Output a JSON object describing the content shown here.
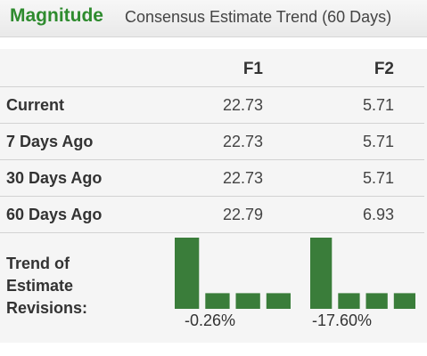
{
  "header": {
    "brand": "Magnitude",
    "subtitle": "Consensus Estimate Trend (60 Days)"
  },
  "table": {
    "columns": [
      "F1",
      "F2"
    ],
    "rows": [
      {
        "label": "Current",
        "f1": "22.73",
        "f2": "5.71"
      },
      {
        "label": "7 Days Ago",
        "f1": "22.73",
        "f2": "5.71"
      },
      {
        "label": "30 Days Ago",
        "f1": "22.73",
        "f2": "5.71"
      },
      {
        "label": "60 Days Ago",
        "f1": "22.79",
        "f2": "6.93"
      }
    ]
  },
  "trend": {
    "label_lines": [
      "Trend of",
      "Estimate",
      "Revisions:"
    ],
    "f1_change": "-0.26%",
    "f2_change": "-17.60%",
    "bar_color": "#3a7d3a"
  },
  "chart_data": [
    {
      "type": "bar",
      "categories": [
        "60 Days Ago",
        "30 Days Ago",
        "7 Days Ago",
        "Current"
      ],
      "values": [
        22.79,
        22.73,
        22.73,
        22.73
      ],
      "series": [
        {
          "name": "F1",
          "values": [
            22.79,
            22.73,
            22.73,
            22.73
          ]
        }
      ]
    },
    {
      "type": "bar",
      "categories": [
        "60 Days Ago",
        "30 Days Ago",
        "7 Days Ago",
        "Current"
      ],
      "values": [
        6.93,
        5.71,
        5.71,
        5.71
      ],
      "series": [
        {
          "name": "F2",
          "values": [
            6.93,
            5.71,
            5.71,
            5.71
          ]
        }
      ]
    }
  ]
}
